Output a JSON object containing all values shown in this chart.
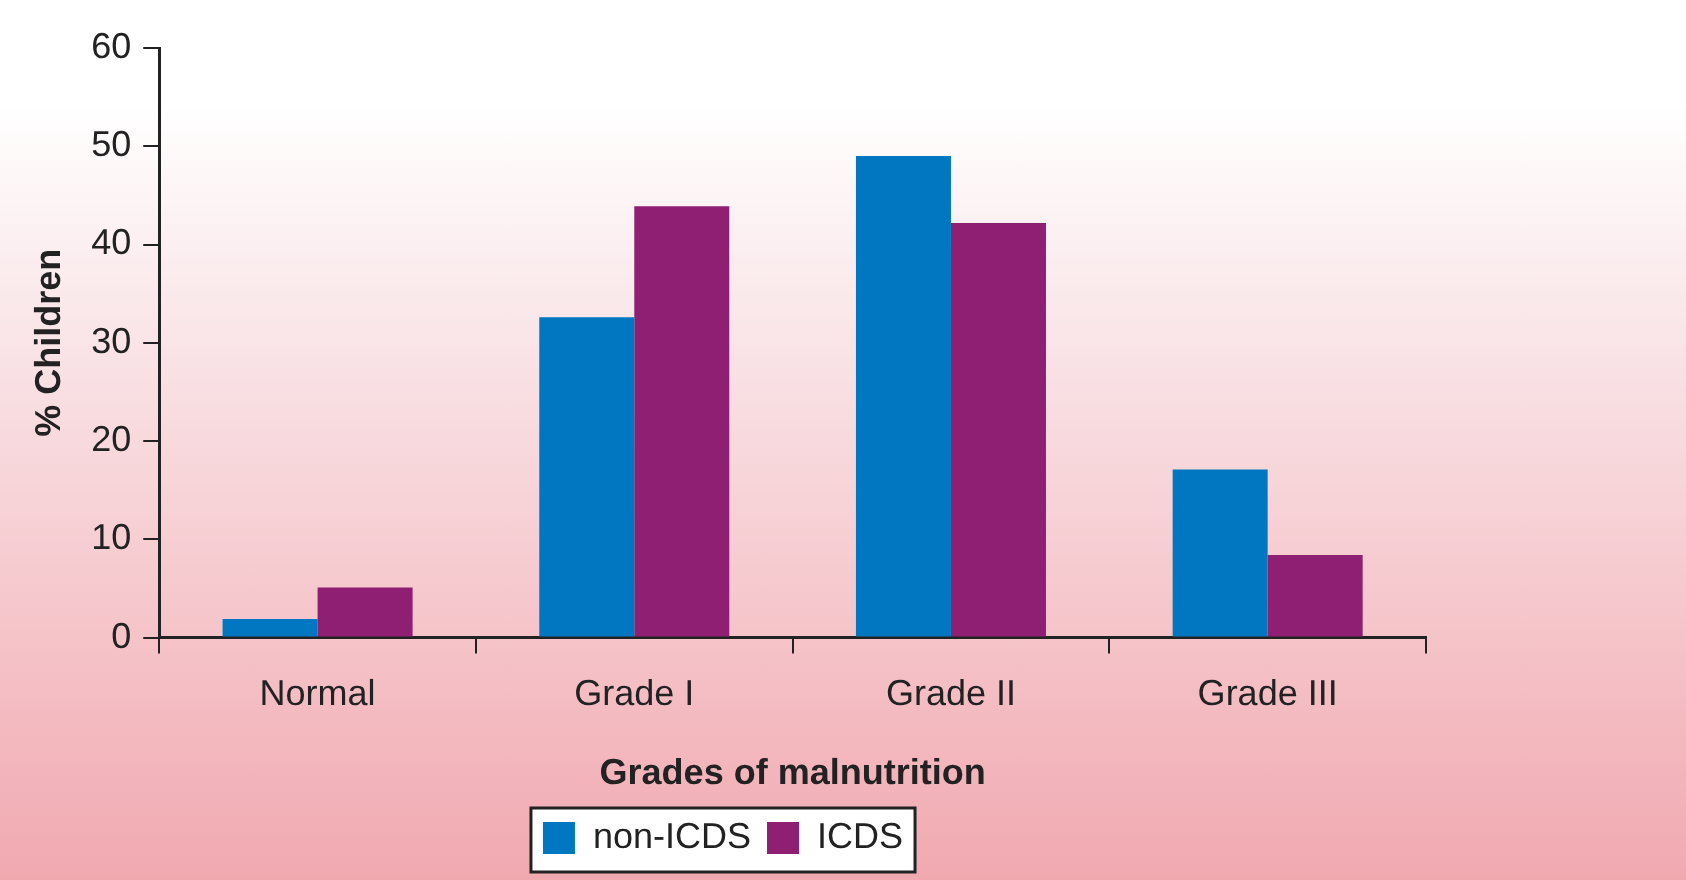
{
  "chart_data": {
    "type": "bar",
    "xlabel": "Grades of malnutrition",
    "ylabel": "% Children",
    "categories": [
      "Normal",
      "Grade I",
      "Grade II",
      "Grade III"
    ],
    "series": [
      {
        "name": "non-ICDS",
        "color": "#0077c0",
        "values": [
          1.9,
          32.6,
          49.0,
          17.1
        ]
      },
      {
        "name": "ICDS",
        "color": "#8e1f72",
        "values": [
          5.1,
          43.9,
          42.2,
          8.4
        ]
      }
    ],
    "ylim": [
      0,
      60
    ],
    "yticks": [
      0,
      10,
      20,
      30,
      40,
      50,
      60
    ],
    "grid": false,
    "legend": "bottom"
  }
}
